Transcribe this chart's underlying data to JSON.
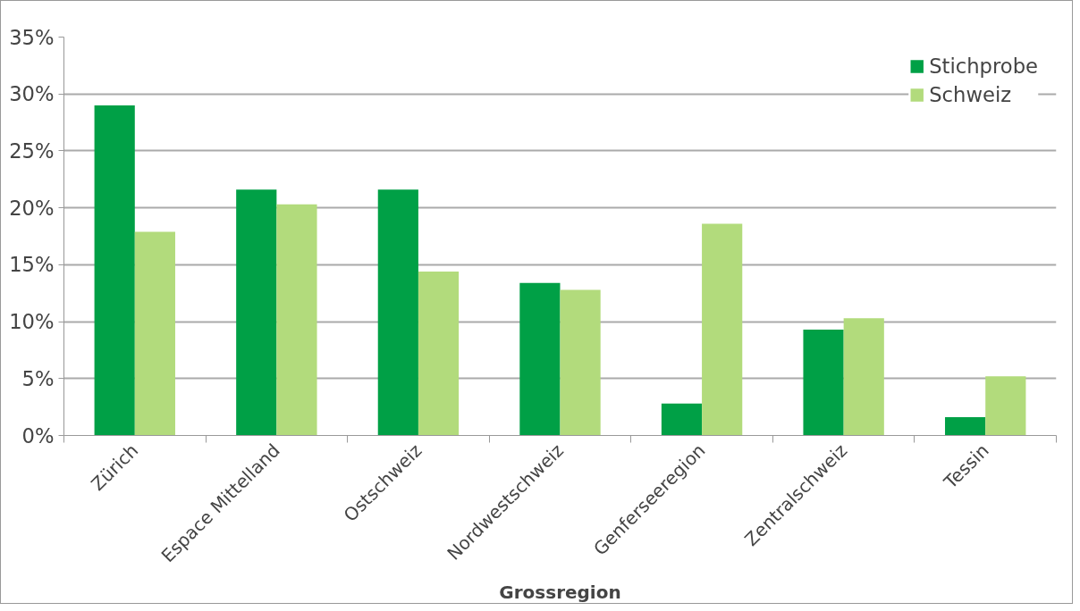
{
  "chart_data": {
    "type": "bar",
    "xlabel": "Grossregion",
    "categories": [
      "Zürich",
      "Espace Mittelland",
      "Ostschweiz",
      "Nordwestschweiz",
      "Genferseeregion",
      "Zentralschweiz",
      "Tessin"
    ],
    "series": [
      {
        "name": "Stichprobe",
        "color": "#00a046",
        "values": [
          29.0,
          21.6,
          21.6,
          13.4,
          2.8,
          9.3,
          1.6
        ]
      },
      {
        "name": "Schweiz",
        "color": "#b2db7c",
        "values": [
          17.9,
          20.3,
          14.4,
          12.8,
          18.6,
          10.3,
          5.2
        ]
      }
    ],
    "ylim": [
      0,
      35
    ],
    "yticks": [
      {
        "value": 0,
        "label": "0%"
      },
      {
        "value": 5,
        "label": "5%"
      },
      {
        "value": 10,
        "label": "10%"
      },
      {
        "value": 15,
        "label": "15%"
      },
      {
        "value": 20,
        "label": "20%"
      },
      {
        "value": 25,
        "label": "25%"
      },
      {
        "value": 30,
        "label": "30%"
      },
      {
        "value": 35,
        "label": "35%"
      }
    ],
    "grid": "y",
    "legend": "top right"
  }
}
